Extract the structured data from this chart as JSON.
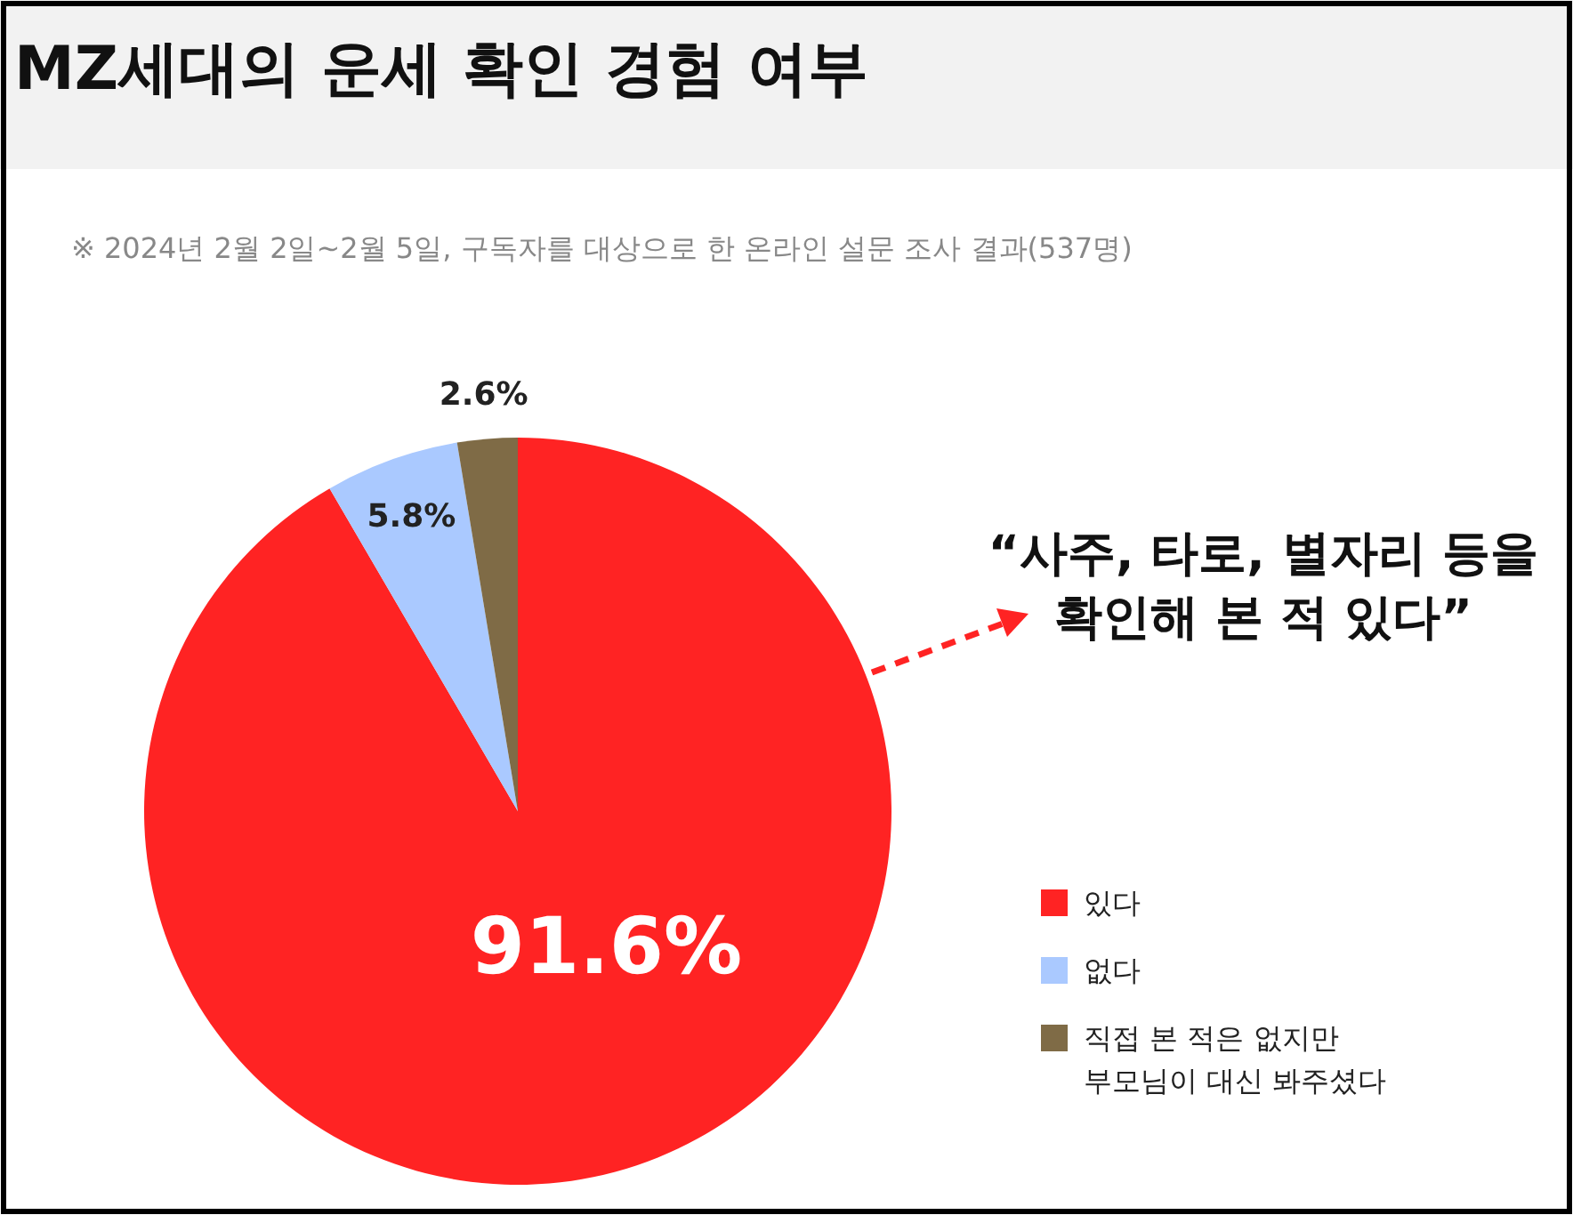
{
  "chart_data": {
    "type": "pie",
    "title": "MZ세대의 운세 확인 경험 여부",
    "subtitle": "※ 2024년 2월 2일~2월 5일, 구독자를 대상으로 한 온라인 설문 조사 결과(537명)",
    "categories": [
      "있다",
      "없다",
      "직접 본 적은 없지만\n부모님이 대신 봐주셨다"
    ],
    "values": [
      91.6,
      5.8,
      2.6
    ],
    "colors": [
      "#ff2323",
      "#aac9ff",
      "#7f6b46"
    ],
    "value_labels": [
      "91.6%",
      "5.8%",
      "2.6%"
    ],
    "annotations": [
      "“사주, 타로, 별자리 등을\n확인해 본 적 있다”"
    ],
    "legend": "bottom right"
  }
}
